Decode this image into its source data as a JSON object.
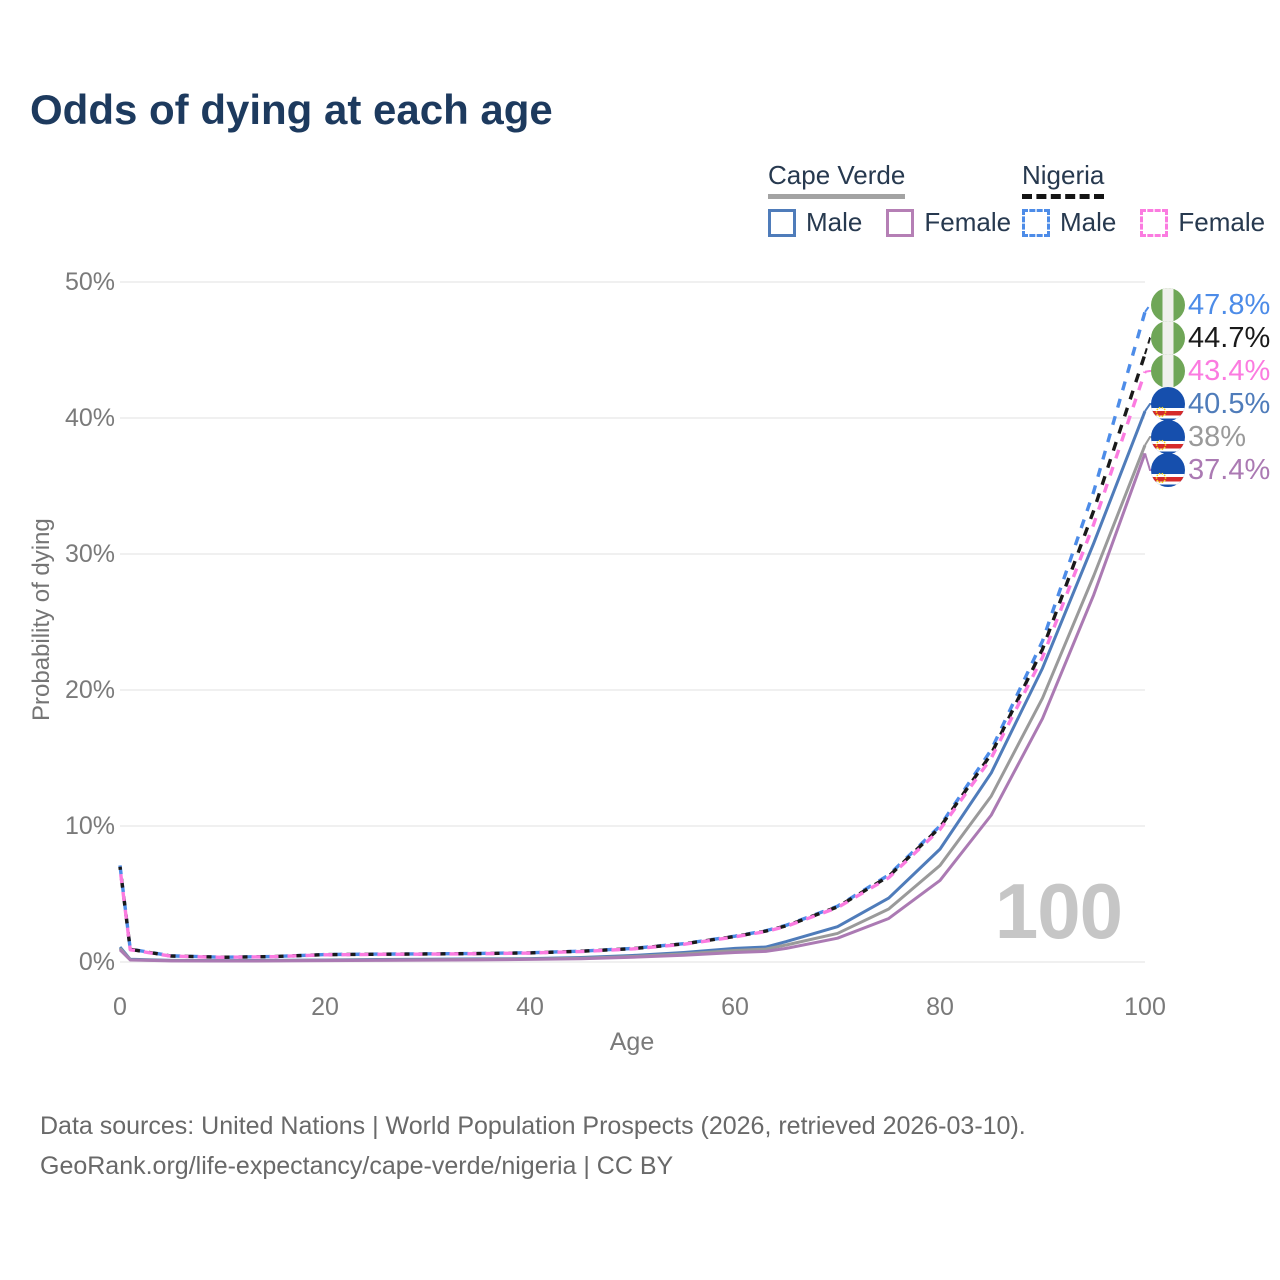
{
  "title": "Odds of dying at each age",
  "watermark": "100",
  "legend": {
    "groups": [
      {
        "label": "Cape Verde",
        "line_style": "solid",
        "line_color": "#a3a3a3",
        "items": [
          {
            "label": "Male",
            "color": "#4f7cba",
            "dashed": false
          },
          {
            "label": "Female",
            "color": "#b57fb5",
            "dashed": false
          }
        ]
      },
      {
        "label": "Nigeria",
        "line_style": "dashed",
        "line_color": "#141414",
        "items": [
          {
            "label": "Male",
            "color": "#4d8ce8",
            "dashed": true
          },
          {
            "label": "Female",
            "color": "#fb7be0",
            "dashed": true
          }
        ]
      }
    ]
  },
  "y_axis": {
    "title": "Probability of dying",
    "ticks": [
      "0%",
      "10%",
      "20%",
      "30%",
      "40%",
      "50%"
    ]
  },
  "x_axis": {
    "title": "Age",
    "ticks": [
      "0",
      "20",
      "40",
      "60",
      "80",
      "100"
    ]
  },
  "chart_data": {
    "type": "line",
    "title": "Odds of dying at each age",
    "xlabel": "Age",
    "ylabel": "Probability of dying",
    "xlim": [
      0,
      100
    ],
    "ylim": [
      0,
      50
    ],
    "grid": "horizontal",
    "legend_position": "top-right",
    "x": [
      0,
      1,
      5,
      10,
      15,
      20,
      25,
      30,
      35,
      40,
      45,
      50,
      55,
      60,
      63,
      65,
      70,
      75,
      80,
      85,
      90,
      95,
      100
    ],
    "series": [
      {
        "name": "Nigeria Male",
        "country": "Nigeria",
        "flag": "nigeria",
        "color": "#4d8ce8",
        "dash": true,
        "end_label": "47.8%",
        "end_value": 47.8,
        "values": [
          7.1,
          0.95,
          0.45,
          0.35,
          0.4,
          0.55,
          0.58,
          0.6,
          0.63,
          0.68,
          0.8,
          1.0,
          1.35,
          1.9,
          2.3,
          2.7,
          4.1,
          6.4,
          10.0,
          15.6,
          23.6,
          34.6,
          47.8
        ]
      },
      {
        "name": "Nigeria Both sexes",
        "country": "Nigeria",
        "flag": "nigeria",
        "color": "#1a1a1a",
        "dash": true,
        "end_label": "44.7%",
        "end_value": 44.7,
        "values": [
          7.0,
          0.93,
          0.44,
          0.35,
          0.4,
          0.54,
          0.57,
          0.59,
          0.62,
          0.67,
          0.79,
          0.98,
          1.33,
          1.88,
          2.27,
          2.66,
          4.05,
          6.3,
          9.9,
          15.3,
          23.0,
          33.2,
          44.7
        ]
      },
      {
        "name": "Nigeria Female",
        "country": "Nigeria",
        "flag": "nigeria",
        "color": "#fb7be0",
        "dash": true,
        "end_label": "43.4%",
        "end_value": 43.4,
        "values": [
          6.9,
          0.9,
          0.43,
          0.34,
          0.39,
          0.53,
          0.56,
          0.58,
          0.61,
          0.66,
          0.77,
          0.96,
          1.3,
          1.85,
          2.24,
          2.62,
          4.0,
          6.2,
          9.75,
          15.0,
          22.4,
          32.2,
          43.4
        ]
      },
      {
        "name": "Cape Verde Male",
        "country": "Cape Verde",
        "flag": "cape-verde",
        "color": "#4f7cba",
        "dash": false,
        "end_label": "40.5%",
        "end_value": 40.5,
        "values": [
          1.1,
          0.2,
          0.12,
          0.1,
          0.12,
          0.15,
          0.18,
          0.2,
          0.23,
          0.25,
          0.33,
          0.48,
          0.7,
          1.0,
          1.1,
          1.5,
          2.6,
          4.7,
          8.3,
          13.9,
          21.6,
          30.8,
          40.5
        ]
      },
      {
        "name": "Cape Verde Both sexes",
        "country": "Cape Verde",
        "flag": "cape-verde",
        "color": "#9a9a9a",
        "dash": false,
        "end_label": "38%",
        "end_value": 38.0,
        "values": [
          1.0,
          0.17,
          0.1,
          0.09,
          0.1,
          0.13,
          0.15,
          0.17,
          0.19,
          0.22,
          0.28,
          0.4,
          0.6,
          0.85,
          0.95,
          1.25,
          2.1,
          3.9,
          7.1,
          12.2,
          19.4,
          28.4,
          38.0
        ]
      },
      {
        "name": "Cape Verde Female",
        "country": "Cape Verde",
        "flag": "cape-verde",
        "color": "#ab7ab3",
        "dash": false,
        "end_label": "37.4%",
        "end_value": 37.4,
        "values": [
          0.9,
          0.15,
          0.08,
          0.07,
          0.08,
          0.1,
          0.12,
          0.14,
          0.16,
          0.19,
          0.24,
          0.35,
          0.5,
          0.7,
          0.78,
          1.0,
          1.75,
          3.2,
          6.0,
          10.8,
          17.9,
          27.0,
          37.4
        ]
      }
    ]
  },
  "footer": {
    "line1": "Data sources: United Nations | World Population Prospects (2026, retrieved 2026-03-10).",
    "line2": "GeoRank.org/life-expectancy/cape-verde/nigeria | CC BY"
  }
}
